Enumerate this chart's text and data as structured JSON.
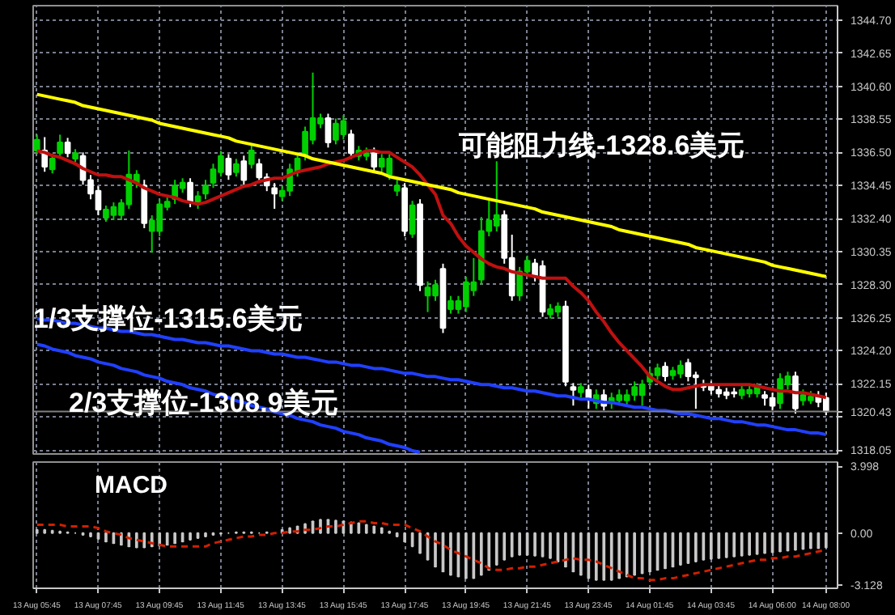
{
  "chart_data": [
    {
      "type": "candlestick",
      "ylim": [
        1317.8,
        1345.6
      ],
      "yticks": [
        {
          "value": 1318.05,
          "label": "1318.05"
        },
        {
          "value": 1320.1,
          "label": null
        },
        {
          "value": 1322.15,
          "label": "1322.15"
        },
        {
          "value": 1324.2,
          "label": "1324.20"
        },
        {
          "value": 1326.25,
          "label": "1326.25"
        },
        {
          "value": 1328.3,
          "label": "1328.30"
        },
        {
          "value": 1330.35,
          "label": "1330.35"
        },
        {
          "value": 1332.4,
          "label": "1332.40"
        },
        {
          "value": 1334.45,
          "label": "1334.45"
        },
        {
          "value": 1336.5,
          "label": "1336.50"
        },
        {
          "value": 1338.55,
          "label": "1338.55"
        },
        {
          "value": 1340.6,
          "label": "1340.60"
        },
        {
          "value": 1342.65,
          "label": "1342.65"
        },
        {
          "value": 1344.7,
          "label": "1344.70"
        }
      ],
      "grid": true,
      "tick_labels": "y",
      "categories": [
        null,
        null,
        null,
        null,
        null,
        null,
        null,
        null,
        null,
        null,
        null,
        null,
        null,
        null,
        null,
        null,
        null,
        null,
        null,
        null,
        null,
        null,
        null,
        null,
        null,
        null,
        null,
        null,
        null,
        null,
        null,
        null,
        null,
        null,
        null,
        null,
        null,
        null,
        null,
        null,
        null,
        null,
        null,
        null,
        null,
        null,
        null,
        null,
        null,
        null,
        null,
        null,
        null,
        null,
        null,
        null,
        null,
        null,
        null,
        null,
        null,
        null,
        null,
        null,
        null,
        null,
        null,
        null,
        null,
        null,
        null,
        null,
        null,
        null,
        null,
        null,
        null,
        null,
        null,
        null,
        null,
        null,
        null,
        null,
        null,
        null,
        null,
        null,
        null,
        null,
        null,
        null,
        null,
        null,
        null,
        null,
        null,
        null,
        null,
        null,
        null,
        null,
        null,
        null
      ],
      "ohlc": [
        [
          1336.62,
          1337.6,
          1336.4,
          1337.28
        ],
        [
          1336.62,
          1337.45,
          1335.3,
          1335.62
        ],
        [
          1335.45,
          1336.4,
          1335.2,
          1336.12
        ],
        [
          1336.45,
          1337.6,
          1336.2,
          1337.12
        ],
        [
          1337.12,
          1337.4,
          1336.2,
          1336.45
        ],
        [
          1336.12,
          1336.7,
          1335.9,
          1336.45
        ],
        [
          1336.28,
          1336.5,
          1334.5,
          1334.78
        ],
        [
          1334.78,
          1335.1,
          1333.6,
          1333.95
        ],
        [
          1334.12,
          1334.4,
          1332.6,
          1332.95
        ],
        [
          1332.45,
          1333.2,
          1332.2,
          1332.95
        ],
        [
          1332.62,
          1333.4,
          1332.3,
          1333.12
        ],
        [
          1332.62,
          1333.6,
          1332.3,
          1333.35
        ],
        [
          1333.28,
          1336.62,
          1333.0,
          1335.12
        ],
        [
          1334.62,
          1335.4,
          1334.3,
          1335.12
        ],
        [
          1334.45,
          1334.8,
          1331.8,
          1332.12
        ],
        [
          1331.62,
          1332.6,
          1330.28,
          1332.28
        ],
        [
          1331.62,
          1333.6,
          1331.3,
          1333.28
        ],
        [
          1333.12,
          1333.7,
          1332.9,
          1333.45
        ],
        [
          1333.62,
          1334.8,
          1333.3,
          1334.45
        ],
        [
          1334.28,
          1334.9,
          1334.0,
          1334.62
        ],
        [
          1334.62,
          1334.9,
          1333.1,
          1333.45
        ],
        [
          1333.28,
          1334.1,
          1333.0,
          1333.78
        ],
        [
          1333.95,
          1334.8,
          1333.6,
          1334.45
        ],
        [
          1334.62,
          1335.8,
          1334.3,
          1335.45
        ],
        [
          1335.28,
          1336.6,
          1335.0,
          1336.28
        ],
        [
          1336.12,
          1336.4,
          1334.8,
          1335.12
        ],
        [
          1335.28,
          1336.1,
          1335.0,
          1335.78
        ],
        [
          1335.95,
          1336.3,
          1334.5,
          1334.78
        ],
        [
          1335.78,
          1337.0,
          1335.5,
          1336.62
        ],
        [
          1335.78,
          1336.1,
          1334.6,
          1334.95
        ],
        [
          1334.95,
          1335.2,
          1334.1,
          1334.45
        ],
        [
          1334.28,
          1334.6,
          1333.0,
          1333.95
        ],
        [
          1333.78,
          1334.4,
          1333.5,
          1334.12
        ],
        [
          1334.12,
          1335.8,
          1333.8,
          1335.45
        ],
        [
          1335.28,
          1336.5,
          1335.0,
          1336.12
        ],
        [
          1336.28,
          1338.1,
          1336.0,
          1337.78
        ],
        [
          1337.28,
          1341.45,
          1337.0,
          1338.62
        ],
        [
          1338.28,
          1338.9,
          1338.0,
          1338.62
        ],
        [
          1338.62,
          1338.9,
          1336.8,
          1337.12
        ],
        [
          1337.28,
          1338.6,
          1337.0,
          1338.28
        ],
        [
          1337.62,
          1338.8,
          1337.3,
          1338.45
        ],
        [
          1337.62,
          1337.9,
          1336.1,
          1336.45
        ],
        [
          1336.28,
          1336.9,
          1336.0,
          1336.62
        ],
        [
          1336.28,
          1336.8,
          1336.0,
          1336.45
        ],
        [
          1336.45,
          1336.8,
          1335.3,
          1335.62
        ],
        [
          1335.62,
          1336.4,
          1335.3,
          1336.12
        ],
        [
          1335.12,
          1336.4,
          1334.8,
          1336.12
        ],
        [
          1334.12,
          1334.8,
          1333.8,
          1334.45
        ],
        [
          1334.28,
          1334.6,
          1331.3,
          1331.62
        ],
        [
          1331.45,
          1333.5,
          1331.2,
          1333.22
        ],
        [
          1333.28,
          1333.6,
          1327.9,
          1328.28
        ],
        [
          1327.62,
          1328.5,
          1326.6,
          1328.12
        ],
        [
          1327.62,
          1328.6,
          1327.3,
          1328.28
        ],
        [
          1329.28,
          1329.6,
          1325.3,
          1325.62
        ],
        [
          1326.78,
          1327.6,
          1326.5,
          1327.28
        ],
        [
          1326.78,
          1327.6,
          1326.5,
          1327.28
        ],
        [
          1326.95,
          1328.8,
          1326.6,
          1328.45
        ],
        [
          1327.95,
          1329.95,
          1327.6,
          1328.45
        ],
        [
          1328.62,
          1332.5,
          1328.3,
          1331.62
        ],
        [
          1331.62,
          1333.5,
          1331.3,
          1332.28
        ],
        [
          1331.95,
          1335.95,
          1331.6,
          1332.62
        ],
        [
          1332.62,
          1332.9,
          1329.6,
          1329.95
        ],
        [
          1329.95,
          1331.4,
          1327.3,
          1327.62
        ],
        [
          1327.62,
          1329.4,
          1327.3,
          1329.12
        ],
        [
          1329.12,
          1330.1,
          1328.8,
          1329.78
        ],
        [
          1329.62,
          1329.9,
          1328.5,
          1328.78
        ],
        [
          1329.45,
          1329.8,
          1326.3,
          1326.62
        ],
        [
          1326.45,
          1327.1,
          1326.2,
          1326.78
        ],
        [
          1326.62,
          1327.2,
          1326.3,
          1326.95
        ],
        [
          1326.95,
          1327.3,
          1322.0,
          1322.28
        ],
        [
          1321.95,
          1322.2,
          1320.8,
          1321.78
        ],
        [
          1321.62,
          1322.2,
          1321.3,
          1321.95
        ],
        [
          1321.78,
          1322.1,
          1320.6,
          1321.28
        ],
        [
          1320.95,
          1321.8,
          1320.6,
          1321.45
        ],
        [
          1321.45,
          1321.8,
          1320.5,
          1320.78
        ],
        [
          1320.95,
          1321.6,
          1320.6,
          1321.28
        ],
        [
          1321.12,
          1321.8,
          1320.8,
          1321.45
        ],
        [
          1321.12,
          1321.8,
          1320.8,
          1321.45
        ],
        [
          1321.45,
          1322.3,
          1321.1,
          1321.95
        ],
        [
          1321.45,
          1322.4,
          1320.8,
          1322.12
        ],
        [
          1322.28,
          1323.1,
          1322.0,
          1322.78
        ],
        [
          1322.68,
          1323.4,
          1322.4,
          1323.12
        ],
        [
          1323.22,
          1323.5,
          1322.3,
          1322.62
        ],
        [
          1322.68,
          1323.2,
          1322.4,
          1322.95
        ],
        [
          1322.78,
          1323.6,
          1322.5,
          1323.28
        ],
        [
          1323.45,
          1323.7,
          1322.3,
          1322.62
        ],
        [
          1322.68,
          1322.9,
          1320.6,
          1322.55
        ],
        [
          1322.12,
          1322.4,
          1321.7,
          1321.95
        ],
        [
          1322.02,
          1322.3,
          1321.5,
          1321.78
        ],
        [
          1321.78,
          1322.1,
          1321.3,
          1321.55
        ],
        [
          1321.62,
          1321.9,
          1321.2,
          1321.45
        ],
        [
          1321.62,
          1321.9,
          1321.3,
          1321.55
        ],
        [
          1321.45,
          1322.1,
          1321.2,
          1321.78
        ],
        [
          1321.55,
          1322.1,
          1321.3,
          1321.78
        ],
        [
          1321.55,
          1322.2,
          1321.3,
          1321.95
        ],
        [
          1321.45,
          1321.7,
          1320.8,
          1321.28
        ],
        [
          1321.28,
          1321.6,
          1320.5,
          1320.78
        ],
        [
          1320.95,
          1322.8,
          1320.6,
          1322.45
        ],
        [
          1322.12,
          1322.9,
          1321.8,
          1322.62
        ],
        [
          1322.62,
          1322.9,
          1320.3,
          1320.62
        ],
        [
          1321.12,
          1321.8,
          1320.8,
          1321.45
        ],
        [
          1321.12,
          1321.7,
          1320.9,
          1321.35
        ],
        [
          1321.35,
          1321.7,
          1320.7,
          1321.02
        ],
        [
          1321.28,
          1321.6,
          1320.2,
          1320.43
        ]
      ],
      "colors": [
        "#00d000",
        "#ffffff",
        "#00d000",
        "#00d000",
        "#ffffff",
        "#00d000",
        "#ffffff",
        "#ffffff",
        "#ffffff",
        "#00d000",
        "#00d000",
        "#00d000",
        "#00d000",
        "#00d000",
        "#ffffff",
        "#00d000",
        "#00d000",
        "#00d000",
        "#00d000",
        "#00d000",
        "#ffffff",
        "#00d000",
        "#00d000",
        "#00d000",
        "#00d000",
        "#ffffff",
        "#00d000",
        "#ffffff",
        "#00d000",
        "#ffffff",
        "#ffffff",
        "#ffffff",
        "#00d000",
        "#00d000",
        "#00d000",
        "#00d000",
        "#00d000",
        "#00d000",
        "#ffffff",
        "#00d000",
        "#00d000",
        "#ffffff",
        "#00d000",
        "#00d000",
        "#ffffff",
        "#00d000",
        "#00d000",
        "#00d000",
        "#ffffff",
        "#00d000",
        "#ffffff",
        "#00d000",
        "#00d000",
        "#ffffff",
        "#00d000",
        "#00d000",
        "#00d000",
        "#00d000",
        "#00d000",
        "#00d000",
        "#00d000",
        "#ffffff",
        "#ffffff",
        "#00d000",
        "#00d000",
        "#ffffff",
        "#ffffff",
        "#00d000",
        "#00d000",
        "#ffffff",
        "#ffffff",
        "#00d000",
        "#ffffff",
        "#00d000",
        "#ffffff",
        "#00d000",
        "#00d000",
        "#00d000",
        "#00d000",
        "#00d000",
        "#00d000",
        "#00d000",
        "#ffffff",
        "#00d000",
        "#00d000",
        "#ffffff",
        "#ffffff",
        "#ffffff",
        "#ffffff",
        "#ffffff",
        "#ffffff",
        "#ffffff",
        "#00d000",
        "#00d000",
        "#00d000",
        "#ffffff",
        "#ffffff",
        "#00d000",
        "#00d000",
        "#ffffff",
        "#00d000",
        "#00d000",
        "#ffffff",
        "#ffffff"
      ],
      "series": [
        {
          "type": "line",
          "color": "#c01010",
          "values": [
            1336.6,
            1336.5,
            1336.3,
            1336.2,
            1336.0,
            1335.8,
            1335.5,
            1335.3,
            1335.1,
            1335.1,
            1335.0,
            1335.0,
            1334.8,
            1334.6,
            1334.3,
            1334.1,
            1333.9,
            1333.8,
            1333.7,
            1333.5,
            1333.4,
            1333.3,
            1333.4,
            1333.6,
            1333.8,
            1334.0,
            1334.2,
            1334.4,
            1334.5,
            1334.7,
            1334.8,
            1334.9,
            1334.9,
            1335.1,
            1335.3,
            1335.4,
            1335.5,
            1335.6,
            1335.8,
            1335.9,
            1336.0,
            1336.2,
            1336.4,
            1336.6,
            1336.6,
            1336.5,
            1336.5,
            1336.2,
            1335.9,
            1335.6,
            1335.1,
            1334.5,
            1333.9,
            1332.6,
            1332.1,
            1331.3,
            1330.7,
            1330.3,
            1329.9,
            1329.6,
            1329.4,
            1329.3,
            1329.1,
            1329.0,
            1328.9,
            1328.8,
            1328.7,
            1328.7,
            1328.7,
            1328.7,
            1328.2,
            1327.8,
            1327.3,
            1326.6,
            1326.0,
            1325.3,
            1324.7,
            1324.2,
            1323.7,
            1323.2,
            1322.6,
            1322.3,
            1322.0,
            1321.8,
            1321.8,
            1321.9,
            1322.0,
            1322.1,
            1322.1,
            1322.1,
            1322.1,
            1322.1,
            1322.1,
            1322.1,
            1322.0,
            1321.9,
            1321.8,
            1321.7,
            1321.7,
            1321.6,
            1321.6,
            1321.5,
            1321.4,
            1321.3
          ]
        },
        {
          "type": "line",
          "color": "#ffff00",
          "values": [
            1340.1,
            1340.0,
            1339.9,
            1339.8,
            1339.7,
            1339.6,
            1339.4,
            1339.3,
            1339.2,
            1339.1,
            1339.0,
            1338.9,
            1338.8,
            1338.7,
            1338.6,
            1338.5,
            1338.3,
            1338.2,
            1338.1,
            1338.0,
            1337.9,
            1337.8,
            1337.7,
            1337.6,
            1337.5,
            1337.4,
            1337.2,
            1337.1,
            1337.0,
            1336.9,
            1336.8,
            1336.7,
            1336.6,
            1336.5,
            1336.4,
            1336.3,
            1336.1,
            1336.0,
            1335.9,
            1335.8,
            1335.7,
            1335.6,
            1335.5,
            1335.4,
            1335.3,
            1335.2,
            1335.0,
            1334.9,
            1334.8,
            1334.7,
            1334.6,
            1334.5,
            1334.4,
            1334.3,
            1334.2,
            1334.0,
            1333.9,
            1333.8,
            1333.7,
            1333.6,
            1333.5,
            1333.4,
            1333.3,
            1333.2,
            1333.1,
            1333.0,
            1332.8,
            1332.7,
            1332.6,
            1332.5,
            1332.4,
            1332.3,
            1332.2,
            1332.1,
            1332.0,
            1331.9,
            1331.7,
            1331.6,
            1331.5,
            1331.4,
            1331.3,
            1331.2,
            1331.1,
            1331.0,
            1330.9,
            1330.8,
            1330.6,
            1330.5,
            1330.4,
            1330.3,
            1330.2,
            1330.1,
            1330.0,
            1329.9,
            1329.8,
            1329.7,
            1329.5,
            1329.4,
            1329.3,
            1329.2,
            1329.1,
            1329.0,
            1328.9,
            1328.8
          ]
        },
        {
          "type": "line",
          "color": "#2040ff",
          "values": [
            1326.2,
            1326.1,
            1326.1,
            1326.0,
            1325.9,
            1325.9,
            1325.8,
            1325.7,
            1325.6,
            1325.6,
            1325.5,
            1325.4,
            1325.4,
            1325.3,
            1325.2,
            1325.2,
            1325.1,
            1325.0,
            1324.9,
            1324.9,
            1324.8,
            1324.7,
            1324.7,
            1324.6,
            1324.5,
            1324.5,
            1324.4,
            1324.3,
            1324.2,
            1324.2,
            1324.1,
            1324.0,
            1324.0,
            1323.9,
            1323.8,
            1323.8,
            1323.7,
            1323.6,
            1323.5,
            1323.5,
            1323.4,
            1323.3,
            1323.3,
            1323.2,
            1323.1,
            1323.1,
            1323.0,
            1322.9,
            1322.8,
            1322.8,
            1322.7,
            1322.6,
            1322.6,
            1322.5,
            1322.4,
            1322.4,
            1322.3,
            1322.2,
            1322.1,
            1322.1,
            1322.0,
            1321.9,
            1321.9,
            1321.8,
            1321.7,
            1321.7,
            1321.6,
            1321.5,
            1321.4,
            1321.4,
            1321.3,
            1321.2,
            1321.2,
            1321.1,
            1321.0,
            1321.0,
            1320.9,
            1320.8,
            1320.7,
            1320.7,
            1320.6,
            1320.5,
            1320.5,
            1320.4,
            1320.3,
            1320.3,
            1320.2,
            1320.1,
            1320.0,
            1320.0,
            1319.9,
            1319.8,
            1319.8,
            1319.7,
            1319.6,
            1319.6,
            1319.5,
            1319.4,
            1319.3,
            1319.3,
            1319.2,
            1319.1,
            1319.1,
            1319.0
          ]
        },
        {
          "type": "line",
          "color": "#2040ff",
          "values": [
            1324.6,
            1324.5,
            1324.3,
            1324.2,
            1324.1,
            1323.9,
            1323.8,
            1323.7,
            1323.5,
            1323.4,
            1323.3,
            1323.1,
            1323.0,
            1322.9,
            1322.7,
            1322.6,
            1322.5,
            1322.3,
            1322.2,
            1322.1,
            1321.9,
            1321.8,
            1321.7,
            1321.5,
            1321.4,
            1321.3,
            1321.1,
            1321.0,
            1320.8,
            1320.7,
            1320.6,
            1320.4,
            1320.3,
            1320.2,
            1320.0,
            1319.9,
            1319.8,
            1319.6,
            1319.5,
            1319.4,
            1319.2,
            1319.1,
            1319.0,
            1318.8,
            1318.7,
            1318.6,
            1318.4,
            1318.3,
            1318.2,
            1318.0,
            1317.9,
            null,
            null,
            null,
            null,
            null,
            null,
            null,
            null,
            null,
            null,
            null,
            null,
            null,
            null,
            null,
            null,
            null,
            null,
            null,
            null,
            null,
            null,
            null,
            null,
            null,
            null,
            null,
            null,
            null,
            null,
            null,
            null,
            null,
            null,
            null,
            null,
            null,
            null,
            null,
            null,
            null,
            null,
            null,
            null,
            null,
            null,
            null,
            null,
            null,
            null,
            null,
            null,
            null
          ]
        }
      ],
      "ref_lines": [
        {
          "axis": "y",
          "value": 1320.43,
          "label": "1320.43",
          "color": "#808080"
        }
      ],
      "annotations": [
        "可能阻力线-1328.6美元",
        "1/3支撑位-1315.6美元",
        "2/3支撑位-1308.9美元"
      ]
    },
    {
      "type": "bar",
      "title": "MACD",
      "ylim": [
        -3.3,
        4.25
      ],
      "yticks": [
        3.998,
        {
          "value": 0,
          "label": "0.00"
        },
        -3.128
      ],
      "grid": "x",
      "categories": [
        "13 Aug 05:45",
        null,
        null,
        null,
        null,
        null,
        null,
        null,
        "13 Aug 07:45",
        null,
        null,
        null,
        null,
        null,
        null,
        null,
        "13 Aug 09:45",
        null,
        null,
        null,
        null,
        null,
        null,
        null,
        "13 Aug 11:45",
        null,
        null,
        null,
        null,
        null,
        null,
        null,
        "13 Aug 13:45",
        null,
        null,
        null,
        null,
        null,
        null,
        null,
        "13 Aug 15:45",
        null,
        null,
        null,
        null,
        null,
        null,
        null,
        "13 Aug 17:45",
        null,
        null,
        null,
        null,
        null,
        null,
        null,
        "13 Aug 19:45",
        null,
        null,
        null,
        null,
        null,
        null,
        null,
        "13 Aug 21:45",
        null,
        null,
        null,
        null,
        null,
        null,
        null,
        "13 Aug 23:45",
        null,
        null,
        null,
        null,
        null,
        null,
        null,
        "14 Aug 01:45",
        null,
        null,
        null,
        null,
        null,
        null,
        null,
        "14 Aug 03:45",
        null,
        null,
        null,
        null,
        null,
        null,
        null,
        "14 Aug 06:00",
        null,
        null,
        null,
        null,
        null,
        null,
        "14 Aug 08:00"
      ],
      "series": [
        {
          "color": "#c8c8c8",
          "values": [
            0.2,
            0.2,
            0.15,
            0.1,
            0.05,
            0.0,
            -0.1,
            -0.2,
            -0.35,
            -0.5,
            -0.6,
            -0.7,
            -0.8,
            -0.85,
            -0.85,
            -0.8,
            -0.75,
            -0.7,
            -0.6,
            -0.5,
            -0.4,
            -0.3,
            -0.2,
            -0.1,
            -0.05,
            0.0,
            0.05,
            0.05,
            0.05,
            0.0,
            0.05,
            null,
            0.2,
            0.3,
            0.4,
            0.55,
            0.7,
            0.8,
            0.8,
            0.75,
            0.7,
            0.65,
            0.6,
            0.5,
            0.4,
            0.3,
            0.1,
            -0.2,
            -0.5,
            -0.8,
            -1.2,
            -1.6,
            -2.0,
            -2.3,
            -2.5,
            -2.6,
            -2.7,
            -2.7,
            -2.5,
            -2.2,
            -1.9,
            -1.6,
            -1.4,
            -1.3,
            -1.3,
            -1.35,
            -1.4,
            -1.5,
            -1.7,
            -2.0,
            -2.3,
            -2.5,
            -2.7,
            -2.8,
            -2.8,
            -2.8,
            -2.7,
            -2.6,
            -2.5,
            -2.4,
            -2.3,
            -2.2,
            -2.1,
            -2.0,
            -1.9,
            -1.8,
            -1.7,
            -1.6,
            -1.55,
            -1.5,
            -1.45,
            -1.4,
            -1.35,
            -1.3,
            -1.25,
            -1.2,
            -1.15,
            -1.1,
            -1.05,
            -1.0,
            -0.95,
            -0.9,
            -0.9,
            -0.85
          ]
        },
        {
          "type": "line",
          "color": "#d02000",
          "line_style": "dashed",
          "values": [
            0.5,
            0.5,
            0.5,
            0.5,
            0.4,
            0.4,
            0.4,
            0.4,
            0.3,
            0.1,
            0.0,
            -0.1,
            -0.3,
            -0.4,
            -0.5,
            -0.6,
            -0.7,
            -0.8,
            -0.8,
            -0.8,
            -0.8,
            -0.8,
            -0.8,
            -0.6,
            -0.5,
            -0.4,
            -0.3,
            -0.2,
            -0.2,
            -0.1,
            -0.1,
            0.0,
            0.0,
            0.1,
            0.1,
            0.2,
            0.2,
            0.3,
            0.4,
            0.4,
            0.5,
            0.6,
            0.7,
            0.7,
            0.6,
            0.6,
            0.5,
            0.5,
            0.5,
            0.3,
            0.1,
            -0.2,
            -0.5,
            -0.7,
            -1.0,
            -1.2,
            -1.4,
            -1.6,
            -1.8,
            -2.1,
            -2.2,
            -2.2,
            -2.1,
            -2.1,
            -2.0,
            -2.0,
            -1.9,
            -1.8,
            -1.7,
            -1.6,
            -1.5,
            -1.6,
            -1.6,
            -1.7,
            -1.9,
            -2.1,
            -2.3,
            -2.5,
            -2.7,
            -2.7,
            -2.8,
            -2.8,
            -2.7,
            -2.7,
            -2.6,
            -2.5,
            -2.4,
            -2.3,
            -2.2,
            -2.1,
            -2.0,
            -1.9,
            -1.8,
            -1.7,
            -1.6,
            -1.6,
            -1.5,
            -1.5,
            -1.4,
            -1.4,
            -1.3,
            -1.2,
            -1.1,
            -1.0
          ]
        }
      ]
    }
  ]
}
